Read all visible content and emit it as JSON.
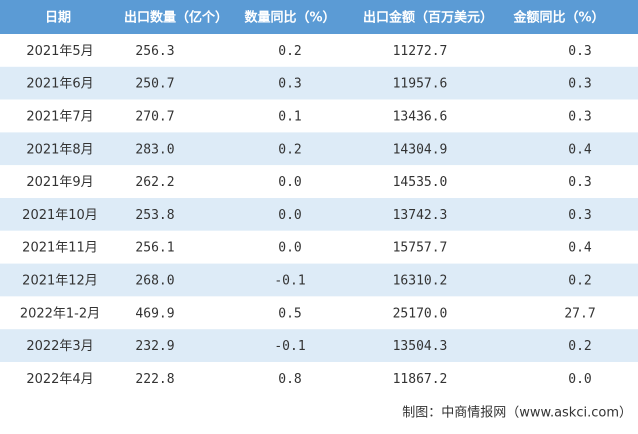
{
  "table": {
    "header": [
      "日期",
      "出口数量（亿个）",
      "数量同比（%）",
      "出口金额（百万美元）",
      "金额同比（%）"
    ],
    "rows": [
      [
        "2021年5月",
        "256.3",
        "0.2",
        "11272.7",
        "0.3"
      ],
      [
        "2021年6月",
        "250.7",
        "0.3",
        "11957.6",
        "0.3"
      ],
      [
        "2021年7月",
        "270.7",
        "0.1",
        "13436.6",
        "0.3"
      ],
      [
        "2021年8月",
        "283.0",
        "0.2",
        "14304.9",
        "0.4"
      ],
      [
        "2021年9月",
        "262.2",
        "0.0",
        "14535.0",
        "0.3"
      ],
      [
        "2021年10月",
        "253.8",
        "0.0",
        "13742.3",
        "0.3"
      ],
      [
        "2021年11月",
        "256.1",
        "0.0",
        "15757.7",
        "0.4"
      ],
      [
        "2021年12月",
        "268.0",
        "-0.1",
        "16310.2",
        "0.2"
      ],
      [
        "2022年1-2月",
        "469.9",
        "0.5",
        "25170.0",
        "27.7"
      ],
      [
        "2022年3月",
        "232.9",
        "-0.1",
        "13504.3",
        "0.2"
      ],
      [
        "2022年4月",
        "222.8",
        "0.8",
        "11867.2",
        "0.0"
      ]
    ]
  },
  "footer": "制图：中商情报网（www.askci.com）"
}
